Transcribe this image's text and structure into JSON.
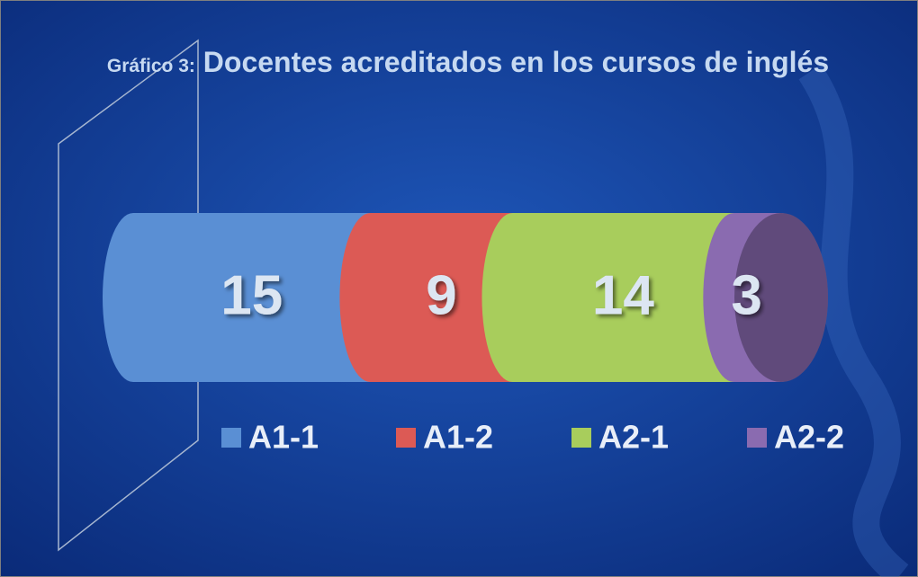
{
  "chart_data": {
    "type": "bar",
    "orientation": "horizontal",
    "stacked": true,
    "title_prefix": "Gráfico 3:",
    "title": "Docentes acreditados en los cursos de inglés",
    "categories": [
      null
    ],
    "series": [
      {
        "name": "A1-1",
        "color": "#5a8fd4",
        "values": [
          15
        ]
      },
      {
        "name": "A1-2",
        "color": "#dc5a55",
        "values": [
          9
        ]
      },
      {
        "name": "A2-1",
        "color": "#a8cd5c",
        "values": [
          14
        ]
      },
      {
        "name": "A2-2",
        "color": "#8a6bb0",
        "values": [
          3
        ]
      }
    ],
    "legend": "bottom"
  }
}
